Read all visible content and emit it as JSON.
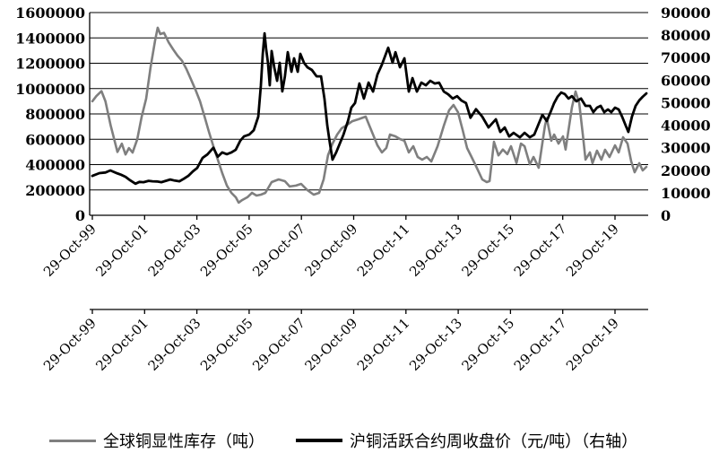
{
  "chart_data": {
    "type": "line",
    "title": "",
    "grid": true,
    "legend_position": "bottom",
    "x_axis": {
      "tick_labels": [
        "29-Oct-99",
        "29-Oct-01",
        "29-Oct-03",
        "29-Oct-05",
        "29-Oct-07",
        "29-Oct-09",
        "29-Oct-11",
        "29-Oct-13",
        "29-Oct-15",
        "29-Oct-17",
        "29-Oct-19"
      ],
      "tick_years_since_start": [
        0,
        2,
        4,
        6,
        8,
        10,
        12,
        14,
        16,
        18,
        20
      ],
      "label_rotation_deg": -45,
      "rows": 2,
      "x_range_years": [
        0,
        21.3
      ]
    },
    "y_axis_left": {
      "min": 0,
      "max": 1600000,
      "step": 200000,
      "tick_labels": [
        "0",
        "200000",
        "400000",
        "600000",
        "800000",
        "1000000",
        "1200000",
        "1400000",
        "1600000"
      ]
    },
    "y_axis_right": {
      "min": 0,
      "max": 90000,
      "step": 10000,
      "tick_labels": [
        "0",
        "10000",
        "20000",
        "30000",
        "40000",
        "50000",
        "60000",
        "70000",
        "80000",
        "90000"
      ]
    },
    "series": [
      {
        "name": "全球铜显性库存（吨）",
        "axis": "left",
        "color": "#7f7f7f",
        "width": 2.6,
        "points": [
          [
            0,
            900000
          ],
          [
            0.15,
            940000
          ],
          [
            0.35,
            980000
          ],
          [
            0.5,
            900000
          ],
          [
            0.7,
            710000
          ],
          [
            0.96,
            500000
          ],
          [
            1.13,
            565000
          ],
          [
            1.27,
            480000
          ],
          [
            1.4,
            530000
          ],
          [
            1.54,
            495000
          ],
          [
            1.72,
            600000
          ],
          [
            1.89,
            780000
          ],
          [
            2.06,
            920000
          ],
          [
            2.23,
            1170000
          ],
          [
            2.4,
            1380000
          ],
          [
            2.5,
            1480000
          ],
          [
            2.6,
            1430000
          ],
          [
            2.74,
            1440000
          ],
          [
            2.92,
            1365000
          ],
          [
            3.09,
            1310000
          ],
          [
            3.26,
            1260000
          ],
          [
            3.43,
            1220000
          ],
          [
            3.6,
            1155000
          ],
          [
            3.77,
            1075000
          ],
          [
            3.95,
            990000
          ],
          [
            4.12,
            900000
          ],
          [
            4.29,
            780000
          ],
          [
            4.46,
            660000
          ],
          [
            4.63,
            545000
          ],
          [
            4.8,
            440000
          ],
          [
            4.97,
            333000
          ],
          [
            5.15,
            234000
          ],
          [
            5.32,
            177000
          ],
          [
            5.49,
            142000
          ],
          [
            5.6,
            100000
          ],
          [
            5.73,
            120000
          ],
          [
            5.93,
            142000
          ],
          [
            6.11,
            177000
          ],
          [
            6.28,
            156000
          ],
          [
            6.45,
            163000
          ],
          [
            6.62,
            177000
          ],
          [
            6.86,
            262000
          ],
          [
            7.13,
            283000
          ],
          [
            7.37,
            269000
          ],
          [
            7.55,
            227000
          ],
          [
            7.79,
            234000
          ],
          [
            7.99,
            248000
          ],
          [
            8.23,
            198000
          ],
          [
            8.47,
            163000
          ],
          [
            8.68,
            177000
          ],
          [
            8.85,
            283000
          ],
          [
            9.02,
            474000
          ],
          [
            9.19,
            566000
          ],
          [
            9.37,
            637000
          ],
          [
            9.54,
            687000
          ],
          [
            9.71,
            708000
          ],
          [
            9.95,
            743000
          ],
          [
            10.19,
            758000
          ],
          [
            10.46,
            779000
          ],
          [
            10.74,
            637000
          ],
          [
            10.91,
            552000
          ],
          [
            11.08,
            496000
          ],
          [
            11.25,
            531000
          ],
          [
            11.39,
            637000
          ],
          [
            11.6,
            623000
          ],
          [
            11.77,
            602000
          ],
          [
            11.94,
            588000
          ],
          [
            12.11,
            496000
          ],
          [
            12.28,
            545000
          ],
          [
            12.45,
            460000
          ],
          [
            12.62,
            439000
          ],
          [
            12.8,
            460000
          ],
          [
            12.97,
            425000
          ],
          [
            13.21,
            545000
          ],
          [
            13.45,
            708000
          ],
          [
            13.65,
            828000
          ],
          [
            13.82,
            871000
          ],
          [
            13.99,
            814000
          ],
          [
            14.17,
            672000
          ],
          [
            14.34,
            531000
          ],
          [
            14.51,
            460000
          ],
          [
            14.68,
            389000
          ],
          [
            14.92,
            283000
          ],
          [
            15.09,
            262000
          ],
          [
            15.2,
            270000
          ],
          [
            15.37,
            580000
          ],
          [
            15.54,
            473000
          ],
          [
            15.71,
            519000
          ],
          [
            15.88,
            483000
          ],
          [
            16.02,
            545000
          ],
          [
            16.23,
            413000
          ],
          [
            16.4,
            566000
          ],
          [
            16.54,
            545000
          ],
          [
            16.74,
            402000
          ],
          [
            16.88,
            460000
          ],
          [
            17.08,
            375000
          ],
          [
            17.32,
            708000
          ],
          [
            17.39,
            767000
          ],
          [
            17.56,
            588000
          ],
          [
            17.67,
            637000
          ],
          [
            17.84,
            566000
          ],
          [
            18.01,
            623000
          ],
          [
            18.11,
            519000
          ],
          [
            18.35,
            850000
          ],
          [
            18.49,
            977000
          ],
          [
            18.63,
            885000
          ],
          [
            18.77,
            637000
          ],
          [
            18.87,
            439000
          ],
          [
            19.04,
            496000
          ],
          [
            19.14,
            411000
          ],
          [
            19.31,
            510000
          ],
          [
            19.48,
            439000
          ],
          [
            19.62,
            517000
          ],
          [
            19.79,
            460000
          ],
          [
            20.0,
            552000
          ],
          [
            20.14,
            496000
          ],
          [
            20.31,
            616000
          ],
          [
            20.48,
            566000
          ],
          [
            20.62,
            425000
          ],
          [
            20.75,
            340000
          ],
          [
            20.93,
            411000
          ],
          [
            21.06,
            354000
          ],
          [
            21.2,
            382000
          ]
        ]
      },
      {
        "name": "沪铜活跃合约周收盘价（元/吨）（右轴）",
        "axis": "right",
        "color": "#000000",
        "width": 2.8,
        "points": [
          [
            0,
            17500
          ],
          [
            0.27,
            18700
          ],
          [
            0.5,
            19000
          ],
          [
            0.69,
            19900
          ],
          [
            0.93,
            18700
          ],
          [
            1.1,
            18000
          ],
          [
            1.27,
            17100
          ],
          [
            1.45,
            15500
          ],
          [
            1.65,
            14000
          ],
          [
            1.8,
            14800
          ],
          [
            1.96,
            14700
          ],
          [
            2.15,
            15300
          ],
          [
            2.3,
            15100
          ],
          [
            2.47,
            15000
          ],
          [
            2.64,
            14700
          ],
          [
            2.81,
            15300
          ],
          [
            2.98,
            15900
          ],
          [
            3.15,
            15400
          ],
          [
            3.33,
            15100
          ],
          [
            3.5,
            16200
          ],
          [
            3.67,
            17500
          ],
          [
            3.85,
            19500
          ],
          [
            4.01,
            21000
          ],
          [
            4.22,
            25500
          ],
          [
            4.4,
            27000
          ],
          [
            4.63,
            30000
          ],
          [
            4.8,
            26000
          ],
          [
            4.97,
            27900
          ],
          [
            5.15,
            27100
          ],
          [
            5.32,
            27900
          ],
          [
            5.49,
            29100
          ],
          [
            5.66,
            33100
          ],
          [
            5.8,
            35000
          ],
          [
            6.0,
            35800
          ],
          [
            6.18,
            37800
          ],
          [
            6.35,
            43800
          ],
          [
            6.45,
            57700
          ],
          [
            6.52,
            71700
          ],
          [
            6.59,
            80800
          ],
          [
            6.65,
            74000
          ],
          [
            6.72,
            67700
          ],
          [
            6.79,
            57700
          ],
          [
            6.86,
            72900
          ],
          [
            6.96,
            65700
          ],
          [
            7.07,
            59700
          ],
          [
            7.17,
            67700
          ],
          [
            7.27,
            55000
          ],
          [
            7.37,
            61700
          ],
          [
            7.48,
            72400
          ],
          [
            7.62,
            63700
          ],
          [
            7.72,
            69700
          ],
          [
            7.86,
            63700
          ],
          [
            7.96,
            71700
          ],
          [
            8.1,
            67700
          ],
          [
            8.23,
            65700
          ],
          [
            8.4,
            64500
          ],
          [
            8.58,
            61700
          ],
          [
            8.75,
            61700
          ],
          [
            8.88,
            51800
          ],
          [
            8.99,
            39800
          ],
          [
            9.09,
            31900
          ],
          [
            9.19,
            24700
          ],
          [
            9.33,
            27900
          ],
          [
            9.47,
            31900
          ],
          [
            9.61,
            35800
          ],
          [
            9.78,
            41800
          ],
          [
            9.91,
            47800
          ],
          [
            10.05,
            49800
          ],
          [
            10.22,
            58500
          ],
          [
            10.39,
            51800
          ],
          [
            10.57,
            58900
          ],
          [
            10.74,
            54900
          ],
          [
            10.91,
            62500
          ],
          [
            11.08,
            66900
          ],
          [
            11.32,
            74400
          ],
          [
            11.49,
            67700
          ],
          [
            11.6,
            72400
          ],
          [
            11.77,
            65700
          ],
          [
            11.94,
            69700
          ],
          [
            12.11,
            54900
          ],
          [
            12.25,
            60900
          ],
          [
            12.42,
            54900
          ],
          [
            12.59,
            58900
          ],
          [
            12.76,
            57700
          ],
          [
            12.93,
            59700
          ],
          [
            13.1,
            58500
          ],
          [
            13.27,
            58900
          ],
          [
            13.45,
            54900
          ],
          [
            13.62,
            53700
          ],
          [
            13.79,
            51800
          ],
          [
            13.96,
            52900
          ],
          [
            14.13,
            50900
          ],
          [
            14.3,
            49800
          ],
          [
            14.47,
            43300
          ],
          [
            14.68,
            47100
          ],
          [
            14.92,
            43800
          ],
          [
            15.16,
            39000
          ],
          [
            15.44,
            42600
          ],
          [
            15.61,
            37000
          ],
          [
            15.78,
            39000
          ],
          [
            15.95,
            35000
          ],
          [
            16.12,
            36600
          ],
          [
            16.36,
            34600
          ],
          [
            16.54,
            36600
          ],
          [
            16.74,
            34600
          ],
          [
            16.91,
            35800
          ],
          [
            17.05,
            39800
          ],
          [
            17.22,
            44600
          ],
          [
            17.39,
            41800
          ],
          [
            17.56,
            46600
          ],
          [
            17.67,
            49800
          ],
          [
            17.8,
            52600
          ],
          [
            17.94,
            54500
          ],
          [
            18.08,
            53800
          ],
          [
            18.22,
            51800
          ],
          [
            18.35,
            52900
          ],
          [
            18.52,
            50600
          ],
          [
            18.7,
            51800
          ],
          [
            18.87,
            48600
          ],
          [
            19.04,
            48600
          ],
          [
            19.17,
            45800
          ],
          [
            19.31,
            47800
          ],
          [
            19.45,
            48600
          ],
          [
            19.59,
            45800
          ],
          [
            19.73,
            47000
          ],
          [
            19.86,
            45800
          ],
          [
            20.0,
            47800
          ],
          [
            20.14,
            47000
          ],
          [
            20.27,
            43800
          ],
          [
            20.41,
            39800
          ],
          [
            20.51,
            37000
          ],
          [
            20.65,
            43800
          ],
          [
            20.79,
            48600
          ],
          [
            20.93,
            51000
          ],
          [
            21.06,
            52600
          ],
          [
            21.2,
            54100
          ]
        ]
      }
    ]
  }
}
